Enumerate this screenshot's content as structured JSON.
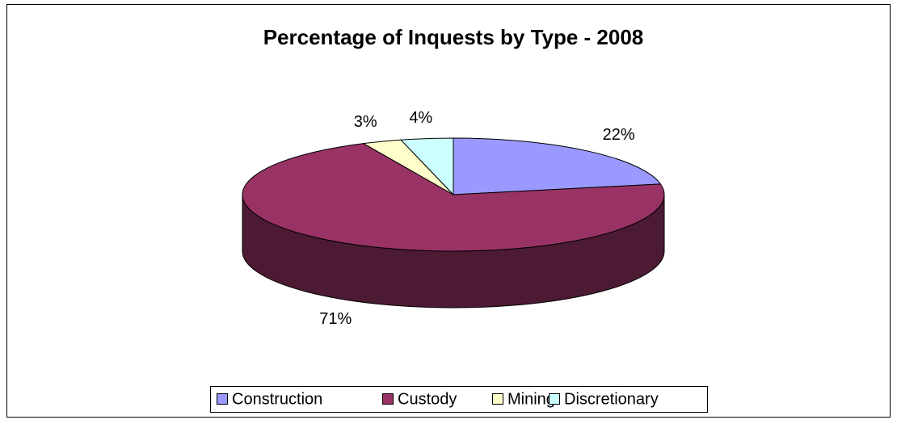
{
  "chart_data": {
    "type": "pie3d",
    "title": "Percentage of Inquests by Type - 2008",
    "categories": [
      "Construction",
      "Custody",
      "Mining",
      "Discretionary"
    ],
    "values": [
      22,
      71,
      3,
      4
    ],
    "value_labels": [
      "22%",
      "71%",
      "3%",
      "4%"
    ],
    "colors": [
      "#9999ff",
      "#993366",
      "#ffffcc",
      "#ccffff"
    ],
    "legend": "bottom"
  }
}
